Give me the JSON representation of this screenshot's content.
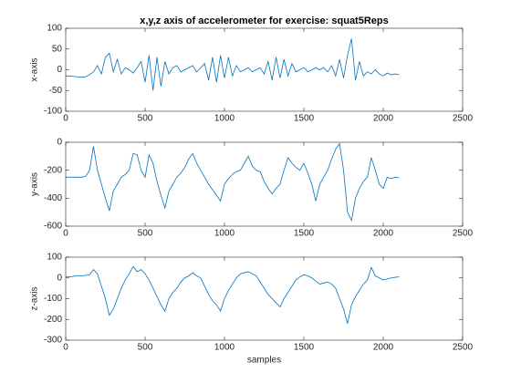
{
  "chart_data": [
    {
      "type": "line",
      "title": "x,y,z axis of accelerometer for exercise: squat5Reps",
      "ylabel": "x-axis",
      "color": "#0072bd",
      "x": [
        0,
        25,
        50,
        75,
        100,
        125,
        150,
        175,
        200,
        225,
        250,
        275,
        300,
        325,
        350,
        375,
        400,
        425,
        450,
        475,
        500,
        525,
        550,
        575,
        600,
        625,
        650,
        675,
        700,
        725,
        750,
        775,
        800,
        825,
        850,
        875,
        900,
        925,
        950,
        975,
        1000,
        1025,
        1050,
        1075,
        1100,
        1125,
        1150,
        1175,
        1200,
        1225,
        1250,
        1275,
        1300,
        1325,
        1350,
        1375,
        1400,
        1425,
        1450,
        1475,
        1500,
        1525,
        1550,
        1575,
        1600,
        1625,
        1650,
        1675,
        1700,
        1725,
        1750,
        1775,
        1800,
        1825,
        1850,
        1875,
        1900,
        1925,
        1950,
        1975,
        2000,
        2025,
        2050,
        2075,
        2100
      ],
      "values": [
        -15,
        -15,
        -16,
        -17,
        -18,
        -17,
        -12,
        -5,
        10,
        -10,
        30,
        40,
        -5,
        25,
        -10,
        5,
        0,
        -8,
        5,
        20,
        -30,
        35,
        -50,
        30,
        -40,
        20,
        -10,
        5,
        10,
        -5,
        0,
        5,
        10,
        -5,
        5,
        15,
        -25,
        30,
        -30,
        35,
        -20,
        30,
        -15,
        10,
        -5,
        0,
        5,
        -5,
        0,
        5,
        -10,
        20,
        -25,
        30,
        -20,
        25,
        -15,
        15,
        -5,
        0,
        5,
        -5,
        0,
        5,
        0,
        5,
        -5,
        10,
        -15,
        25,
        -20,
        35,
        75,
        -25,
        20,
        -15,
        -5,
        -10,
        0,
        -10,
        -15,
        -8,
        -12,
        -10,
        -12
      ],
      "xlim": [
        0,
        2500
      ],
      "xticks": [
        0,
        500,
        1000,
        1500,
        2000,
        2500
      ],
      "ylim": [
        -100,
        100
      ],
      "yticks": [
        -100,
        -50,
        0,
        50,
        100
      ]
    },
    {
      "type": "line",
      "ylabel": "y-axis",
      "color": "#0072bd",
      "x": [
        0,
        25,
        50,
        75,
        100,
        125,
        150,
        175,
        200,
        225,
        250,
        275,
        300,
        325,
        350,
        375,
        400,
        425,
        450,
        475,
        500,
        525,
        550,
        575,
        600,
        625,
        650,
        675,
        700,
        725,
        750,
        775,
        800,
        825,
        850,
        875,
        900,
        925,
        950,
        975,
        1000,
        1025,
        1050,
        1075,
        1100,
        1125,
        1150,
        1175,
        1200,
        1225,
        1250,
        1275,
        1300,
        1325,
        1350,
        1375,
        1400,
        1425,
        1450,
        1475,
        1500,
        1525,
        1550,
        1575,
        1600,
        1625,
        1650,
        1675,
        1700,
        1725,
        1750,
        1775,
        1800,
        1825,
        1850,
        1875,
        1900,
        1925,
        1950,
        1975,
        2000,
        2025,
        2050,
        2075,
        2100
      ],
      "values": [
        -250,
        -250,
        -250,
        -250,
        -250,
        -245,
        -200,
        -30,
        -200,
        -300,
        -400,
        -490,
        -350,
        -300,
        -250,
        -230,
        -200,
        -80,
        -90,
        -200,
        -250,
        -90,
        -150,
        -280,
        -380,
        -470,
        -350,
        -300,
        -250,
        -220,
        -180,
        -120,
        -80,
        -150,
        -200,
        -250,
        -300,
        -340,
        -380,
        -420,
        -300,
        -260,
        -230,
        -210,
        -200,
        -150,
        -100,
        -170,
        -200,
        -210,
        -280,
        -330,
        -370,
        -330,
        -300,
        -200,
        -110,
        -150,
        -180,
        -200,
        -150,
        -220,
        -300,
        -420,
        -300,
        -250,
        -200,
        -120,
        -50,
        -10,
        -200,
        -500,
        -560,
        -400,
        -330,
        -280,
        -250,
        -110,
        -200,
        -300,
        -330,
        -250,
        -260,
        -250,
        -255
      ],
      "xlim": [
        0,
        2500
      ],
      "xticks": [
        0,
        500,
        1000,
        1500,
        2000,
        2500
      ],
      "ylim": [
        -600,
        0
      ],
      "yticks": [
        -600,
        -400,
        -200,
        0
      ]
    },
    {
      "type": "line",
      "ylabel": "z-axis",
      "xlabel": "samples",
      "color": "#0072bd",
      "x": [
        0,
        25,
        50,
        75,
        100,
        125,
        150,
        175,
        200,
        225,
        250,
        275,
        300,
        325,
        350,
        375,
        400,
        425,
        450,
        475,
        500,
        525,
        550,
        575,
        600,
        625,
        650,
        675,
        700,
        725,
        750,
        775,
        800,
        825,
        850,
        875,
        900,
        925,
        950,
        975,
        1000,
        1025,
        1050,
        1075,
        1100,
        1125,
        1150,
        1175,
        1200,
        1225,
        1250,
        1275,
        1300,
        1325,
        1350,
        1375,
        1400,
        1425,
        1450,
        1475,
        1500,
        1525,
        1550,
        1575,
        1600,
        1625,
        1650,
        1675,
        1700,
        1725,
        1750,
        1775,
        1800,
        1825,
        1850,
        1875,
        1900,
        1925,
        1950,
        1975,
        2000,
        2025,
        2050,
        2075,
        2100
      ],
      "values": [
        5,
        5,
        8,
        10,
        10,
        12,
        15,
        40,
        20,
        -40,
        -100,
        -180,
        -150,
        -100,
        -50,
        -10,
        20,
        55,
        30,
        40,
        20,
        -10,
        -50,
        -90,
        -130,
        -160,
        -100,
        -70,
        -50,
        -20,
        0,
        10,
        25,
        10,
        0,
        -40,
        -80,
        -110,
        -130,
        -160,
        -100,
        -60,
        -30,
        0,
        20,
        25,
        30,
        20,
        10,
        -20,
        -50,
        -80,
        -100,
        -120,
        -140,
        -100,
        -70,
        -40,
        -10,
        5,
        15,
        10,
        0,
        -15,
        -30,
        -25,
        -20,
        -30,
        -50,
        -100,
        -150,
        -220,
        -130,
        -90,
        -60,
        -30,
        -10,
        50,
        10,
        0,
        -10,
        -5,
        0,
        3,
        5
      ],
      "xlim": [
        0,
        2500
      ],
      "xticks": [
        0,
        500,
        1000,
        1500,
        2000,
        2500
      ],
      "ylim": [
        -300,
        100
      ],
      "yticks": [
        -300,
        -200,
        -100,
        0,
        100
      ]
    }
  ]
}
